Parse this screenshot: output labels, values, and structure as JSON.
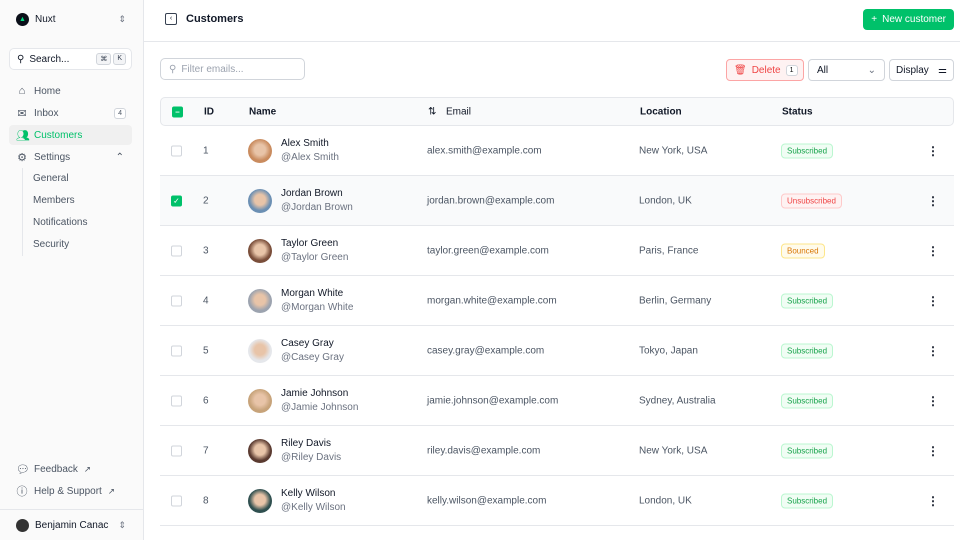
{
  "sidebar": {
    "team": "Nuxt",
    "search": "Search...",
    "kbd": [
      "⌘",
      "K"
    ],
    "items": [
      {
        "label": "Home",
        "icon": "home-icon"
      },
      {
        "label": "Inbox",
        "icon": "inbox-icon",
        "badge": "4"
      },
      {
        "label": "Customers",
        "icon": "users-icon"
      },
      {
        "label": "Settings",
        "icon": "gear-icon"
      }
    ],
    "settings_sub": [
      "General",
      "Members",
      "Notifications",
      "Security"
    ],
    "footer": [
      {
        "label": "Feedback",
        "icon": "chat-icon"
      },
      {
        "label": "Help & Support",
        "icon": "info-icon"
      }
    ],
    "user": "Benjamin Canac"
  },
  "header": {
    "title": "Customers",
    "new_button": "New customer"
  },
  "toolbar": {
    "filter_placeholder": "Filter emails...",
    "delete": "Delete",
    "delete_count": "1",
    "status_select": "All",
    "display": "Display"
  },
  "table": {
    "columns": [
      "ID",
      "Name",
      "Email",
      "Location",
      "Status"
    ],
    "rows": [
      {
        "id": "1",
        "name": "Alex Smith",
        "handle": "@Alex Smith",
        "email": "alex.smith@example.com",
        "location": "New York, USA",
        "status": "Subscribed",
        "checked": false
      },
      {
        "id": "2",
        "name": "Jordan Brown",
        "handle": "@Jordan Brown",
        "email": "jordan.brown@example.com",
        "location": "London, UK",
        "status": "Unsubscribed",
        "checked": true
      },
      {
        "id": "3",
        "name": "Taylor Green",
        "handle": "@Taylor Green",
        "email": "taylor.green@example.com",
        "location": "Paris, France",
        "status": "Bounced",
        "checked": false
      },
      {
        "id": "4",
        "name": "Morgan White",
        "handle": "@Morgan White",
        "email": "morgan.white@example.com",
        "location": "Berlin, Germany",
        "status": "Subscribed",
        "checked": false
      },
      {
        "id": "5",
        "name": "Casey Gray",
        "handle": "@Casey Gray",
        "email": "casey.gray@example.com",
        "location": "Tokyo, Japan",
        "status": "Subscribed",
        "checked": false
      },
      {
        "id": "6",
        "name": "Jamie Johnson",
        "handle": "@Jamie Johnson",
        "email": "jamie.johnson@example.com",
        "location": "Sydney, Australia",
        "status": "Subscribed",
        "checked": false
      },
      {
        "id": "7",
        "name": "Riley Davis",
        "handle": "@Riley Davis",
        "email": "riley.davis@example.com",
        "location": "New York, USA",
        "status": "Subscribed",
        "checked": false
      },
      {
        "id": "8",
        "name": "Kelly Wilson",
        "handle": "@Kelly Wilson",
        "email": "kelly.wilson@example.com",
        "location": "London, UK",
        "status": "Subscribed",
        "checked": false
      }
    ]
  },
  "colors": {
    "accent": "#00c16a",
    "subscribed": "#16a34a",
    "unsubscribed": "#ef4444",
    "bounced": "#d97706"
  }
}
